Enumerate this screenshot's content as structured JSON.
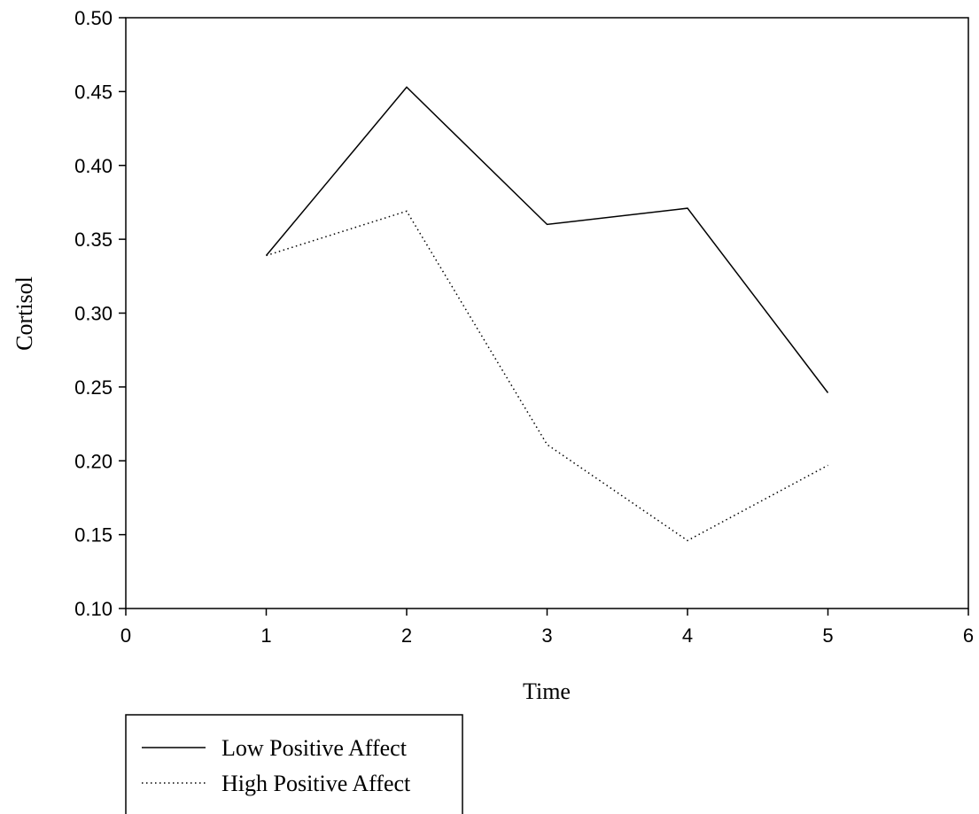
{
  "chart_data": {
    "type": "line",
    "title": "",
    "xlabel": "Time",
    "ylabel": "Cortisol",
    "xlim": [
      0,
      6
    ],
    "ylim": [
      0.1,
      0.5
    ],
    "xticks": [
      "0",
      "1",
      "2",
      "3",
      "4",
      "5",
      "6"
    ],
    "yticks": [
      "0.10",
      "0.15",
      "0.20",
      "0.25",
      "0.30",
      "0.35",
      "0.40",
      "0.45",
      "0.50"
    ],
    "x": [
      1,
      2,
      3,
      4,
      5
    ],
    "grid": false,
    "legend_position": "bottom-left",
    "series": [
      {
        "name": "Low Positive Affect",
        "style": "solid",
        "color": "#000000",
        "values": [
          0.339,
          0.453,
          0.36,
          0.371,
          0.246
        ]
      },
      {
        "name": "High Positive Affect",
        "style": "dotted",
        "color": "#000000",
        "values": [
          0.339,
          0.369,
          0.211,
          0.146,
          0.197
        ]
      }
    ]
  }
}
